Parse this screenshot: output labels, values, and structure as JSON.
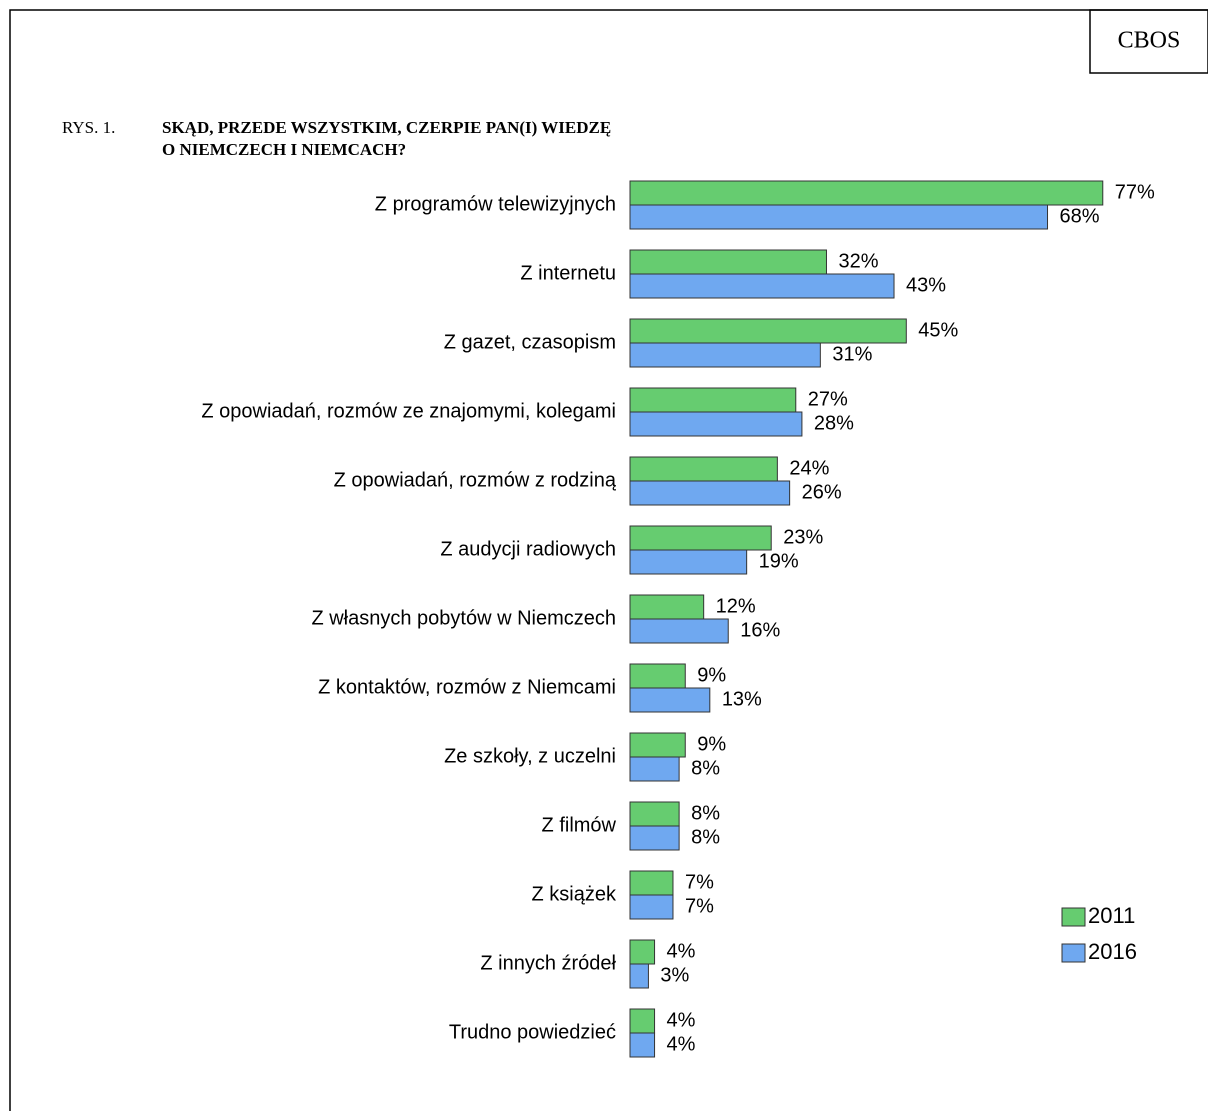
{
  "chart_data": {
    "type": "hbar",
    "source": "CBOS",
    "figure_label": "RYS. 1.",
    "title_lines": [
      "SKĄD, PRZEDE WSZYSTKIM, CZERPIE PAN(I) WIEDZĘ",
      "O NIEMCZECH I NIEMCACH?"
    ],
    "categories": [
      "Z programów telewizyjnych",
      "Z internetu",
      "Z gazet, czasopism",
      "Z opowiadań, rozmów ze znajomymi, kolegami",
      "Z opowiadań, rozmów z rodziną",
      "Z audycji radiowych",
      "Z własnych pobytów w Niemczech",
      "Z kontaktów, rozmów z Niemcami",
      "Ze szkoły, z uczelni",
      "Z filmów",
      "Z książek",
      "Z innych źródeł",
      "Trudno powiedzieć"
    ],
    "series": [
      {
        "name": "2011",
        "color": "#66cc70",
        "values": [
          77,
          32,
          45,
          27,
          24,
          23,
          12,
          9,
          9,
          8,
          7,
          4,
          4
        ],
        "value_labels": [
          "77%",
          "32%",
          "45%",
          "27%",
          "24%",
          "23%",
          "12%",
          "9%",
          "9%",
          "8%",
          "7%",
          "4%",
          "4%"
        ]
      },
      {
        "name": "2016",
        "color": "#6fa8f0",
        "values": [
          68,
          43,
          31,
          28,
          26,
          19,
          16,
          13,
          8,
          8,
          7,
          3,
          4
        ],
        "value_labels": [
          "68%",
          "43%",
          "31%",
          "28%",
          "26%",
          "19%",
          "16%",
          "13%",
          "8%",
          "8%",
          "7%",
          "3%",
          "4%"
        ]
      }
    ],
    "legend": "right"
  }
}
